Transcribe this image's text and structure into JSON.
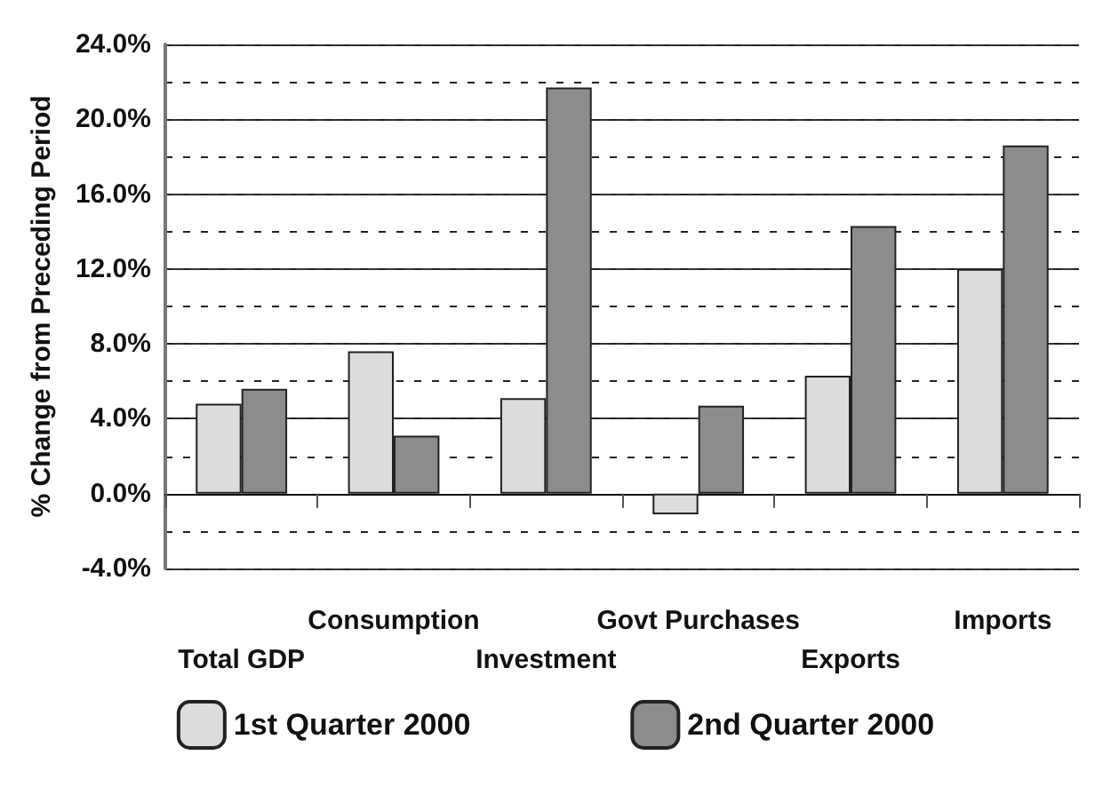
{
  "chart_data": {
    "type": "bar",
    "ylabel": "% Change from Preceding Period",
    "categories": [
      "Total GDP",
      "Consumption",
      "Investment",
      "Govt Purchases",
      "Exports",
      "Imports"
    ],
    "series": [
      {
        "name": "1st Quarter 2000",
        "color": "#dcdcdc",
        "values": [
          4.8,
          7.6,
          5.1,
          -1.1,
          6.3,
          12.0
        ]
      },
      {
        "name": "2nd Quarter 2000",
        "color": "#8c8c8c",
        "values": [
          5.6,
          3.1,
          21.7,
          4.7,
          14.3,
          18.6
        ]
      }
    ],
    "ylim": [
      -4,
      24
    ],
    "yticks": [
      {
        "value": -4,
        "label": "-4.0%"
      },
      {
        "value": -2,
        "label": null
      },
      {
        "value": 0,
        "label": "0.0%"
      },
      {
        "value": 2,
        "label": null
      },
      {
        "value": 4,
        "label": "4.0%"
      },
      {
        "value": 6,
        "label": null
      },
      {
        "value": 8,
        "label": "8.0%"
      },
      {
        "value": 10,
        "label": null
      },
      {
        "value": 12,
        "label": "12.0%"
      },
      {
        "value": 14,
        "label": null
      },
      {
        "value": 16,
        "label": "16.0%"
      },
      {
        "value": 18,
        "label": null
      },
      {
        "value": 20,
        "label": "20.0%"
      },
      {
        "value": 22,
        "label": null
      },
      {
        "value": 24,
        "label": "24.0%"
      }
    ],
    "grid": "y",
    "legend": "bottom"
  }
}
